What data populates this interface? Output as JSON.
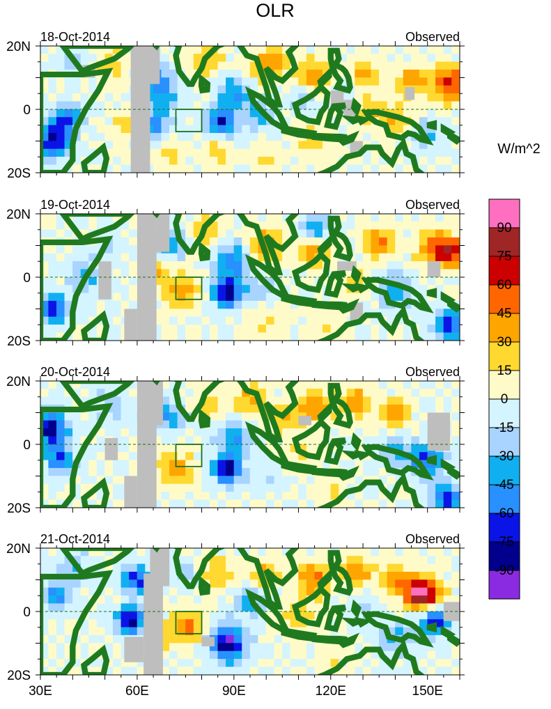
{
  "title": "OLR",
  "units": "W/m^2",
  "land_color": "#1f7a1f",
  "missing_color": "#bebebe",
  "domain": {
    "lon": [
      30,
      160
    ],
    "lat": [
      -20,
      20
    ]
  },
  "target_box": {
    "lon": [
      72,
      80
    ],
    "lat": [
      -7,
      0
    ]
  },
  "lat_labels": [
    {
      "lat": 20,
      "label": "20N"
    },
    {
      "lat": 0,
      "label": "0"
    },
    {
      "lat": -20,
      "label": "20S"
    }
  ],
  "lon_labels": [
    {
      "lon": 30,
      "label": "30E"
    },
    {
      "lon": 60,
      "label": "60E"
    },
    {
      "lon": 90,
      "label": "90E"
    },
    {
      "lon": 120,
      "label": "120E"
    },
    {
      "lon": 150,
      "label": "150E"
    }
  ],
  "colorbar": {
    "levels": [
      "90",
      "75",
      "60",
      "45",
      "30",
      "15",
      "0",
      "-15",
      "-30",
      "-45",
      "-60",
      "-75",
      "-90"
    ],
    "colors": [
      "#ff6fbf",
      "#a02525",
      "#cc0000",
      "#ff6600",
      "#ffa500",
      "#ffd830",
      "#fffbc8",
      "#d4f4ff",
      "#a8d4ff",
      "#10b0f0",
      "#2890ff",
      "#0a14e6",
      "#00008c",
      "#8a2be2"
    ]
  },
  "panels": [
    {
      "date": "18-Oct-2014",
      "label": "Observed",
      "anomalies": [
        {
          "lon": 115,
          "lat": 10,
          "v": 45
        },
        {
          "lon": 130,
          "lat": 11,
          "v": 45
        },
        {
          "lon": 145,
          "lat": 9,
          "v": 45
        },
        {
          "lon": 157,
          "lat": 8,
          "v": 65
        },
        {
          "lon": 103,
          "lat": 15,
          "v": 35
        },
        {
          "lon": 98,
          "lat": 13,
          "v": 30
        },
        {
          "lon": 82,
          "lat": 16,
          "v": 30
        },
        {
          "lon": 132,
          "lat": 0,
          "v": 30
        },
        {
          "lon": 140,
          "lat": -3,
          "v": 30
        },
        {
          "lon": 115,
          "lat": -10,
          "v": 25
        },
        {
          "lon": 85,
          "lat": -13,
          "v": 25
        },
        {
          "lon": 58,
          "lat": -5,
          "v": 30
        },
        {
          "lon": 52,
          "lat": 14,
          "v": 25
        },
        {
          "lon": 70,
          "lat": -14,
          "v": 20
        },
        {
          "lon": 100,
          "lat": -16,
          "v": 20
        },
        {
          "lon": 34,
          "lat": -10,
          "v": -80
        },
        {
          "lon": 38,
          "lat": -3,
          "v": -55
        },
        {
          "lon": 66,
          "lat": 10,
          "v": -45
        },
        {
          "lon": 68,
          "lat": 4,
          "v": -35
        },
        {
          "lon": 65,
          "lat": -5,
          "v": -60
        },
        {
          "lon": 86,
          "lat": -4,
          "v": -75
        },
        {
          "lon": 90,
          "lat": 5,
          "v": -45
        },
        {
          "lon": 98,
          "lat": -2,
          "v": -40
        },
        {
          "lon": 112,
          "lat": 3,
          "v": -30
        },
        {
          "lon": 125,
          "lat": 7,
          "v": -20
        },
        {
          "lon": 40,
          "lat": 15,
          "v": -20
        },
        {
          "lon": 150,
          "lat": -8,
          "v": -30
        }
      ],
      "missing": [
        {
          "lon": [
            58,
            64
          ],
          "lat": [
            -20,
            20
          ]
        },
        {
          "lon": [
            62,
            67
          ],
          "lat": [
            8,
            20
          ]
        },
        {
          "lon": [
            43,
            47
          ],
          "lat": [
            10,
            14
          ]
        },
        {
          "lon": [
            120,
            124
          ],
          "lat": [
            0,
            6
          ]
        },
        {
          "lon": [
            124,
            128
          ],
          "lat": [
            -2,
            3
          ]
        },
        {
          "lon": [
            143,
            146
          ],
          "lat": [
            3,
            7
          ]
        },
        {
          "lon": [
            126,
            130
          ],
          "lat": [
            -14,
            -10
          ]
        }
      ]
    },
    {
      "date": "19-Oct-2014",
      "label": "Observed",
      "anomalies": [
        {
          "lon": 100,
          "lat": 10,
          "v": 45
        },
        {
          "lon": 115,
          "lat": 8,
          "v": 45
        },
        {
          "lon": 135,
          "lat": 11,
          "v": 50
        },
        {
          "lon": 152,
          "lat": 9,
          "v": 50
        },
        {
          "lon": 158,
          "lat": 8,
          "v": 62
        },
        {
          "lon": 82,
          "lat": 15,
          "v": 30
        },
        {
          "lon": 74,
          "lat": -5,
          "v": 40
        },
        {
          "lon": 66,
          "lat": 2,
          "v": 30
        },
        {
          "lon": 128,
          "lat": -2,
          "v": 25
        },
        {
          "lon": 100,
          "lat": -14,
          "v": 20
        },
        {
          "lon": 120,
          "lat": -15,
          "v": 15
        },
        {
          "lon": 34,
          "lat": -10,
          "v": -70
        },
        {
          "lon": 44,
          "lat": 0,
          "v": -30
        },
        {
          "lon": 70,
          "lat": 10,
          "v": -45
        },
        {
          "lon": 88,
          "lat": -5,
          "v": -90
        },
        {
          "lon": 90,
          "lat": 5,
          "v": -55
        },
        {
          "lon": 98,
          "lat": -4,
          "v": -30
        },
        {
          "lon": 115,
          "lat": 15,
          "v": -45
        },
        {
          "lon": 140,
          "lat": -4,
          "v": -40
        },
        {
          "lon": 157,
          "lat": -15,
          "v": -70
        },
        {
          "lon": 52,
          "lat": 10,
          "v": -20
        }
      ],
      "missing": [
        {
          "lon": [
            60,
            66
          ],
          "lat": [
            -20,
            20
          ]
        },
        {
          "lon": [
            66,
            70
          ],
          "lat": [
            8,
            20
          ]
        },
        {
          "lon": [
            48,
            52
          ],
          "lat": [
            -7,
            5
          ]
        },
        {
          "lon": [
            56,
            60
          ],
          "lat": [
            -20,
            -10
          ]
        },
        {
          "lon": [
            122,
            128
          ],
          "lat": [
            2,
            5
          ]
        },
        {
          "lon": [
            150,
            154
          ],
          "lat": [
            0,
            5
          ]
        },
        {
          "lon": [
            126,
            130
          ],
          "lat": [
            -14,
            -8
          ]
        }
      ]
    },
    {
      "date": "20-Oct-2014",
      "label": "Observed",
      "anomalies": [
        {
          "lon": 115,
          "lat": 12,
          "v": 45
        },
        {
          "lon": 128,
          "lat": 13,
          "v": 45
        },
        {
          "lon": 140,
          "lat": 10,
          "v": 45
        },
        {
          "lon": 95,
          "lat": 14,
          "v": 35
        },
        {
          "lon": 105,
          "lat": 8,
          "v": 35
        },
        {
          "lon": 82,
          "lat": 12,
          "v": 30
        },
        {
          "lon": 72,
          "lat": -8,
          "v": 35
        },
        {
          "lon": 110,
          "lat": -3,
          "v": 20
        },
        {
          "lon": 120,
          "lat": -15,
          "v": 15
        },
        {
          "lon": 33,
          "lat": 5,
          "v": -85
        },
        {
          "lon": 36,
          "lat": -5,
          "v": -60
        },
        {
          "lon": 88,
          "lat": -8,
          "v": -85
        },
        {
          "lon": 90,
          "lat": 2,
          "v": -45
        },
        {
          "lon": 66,
          "lat": 10,
          "v": -45
        },
        {
          "lon": 72,
          "lat": 8,
          "v": -30
        },
        {
          "lon": 150,
          "lat": -5,
          "v": -65
        },
        {
          "lon": 156,
          "lat": -17,
          "v": -70
        },
        {
          "lon": 140,
          "lat": -2,
          "v": -35
        },
        {
          "lon": 52,
          "lat": 12,
          "v": -25
        },
        {
          "lon": 100,
          "lat": -10,
          "v": -15
        }
      ],
      "missing": [
        {
          "lon": [
            60,
            66
          ],
          "lat": [
            -20,
            20
          ]
        },
        {
          "lon": [
            64,
            68
          ],
          "lat": [
            6,
            20
          ]
        },
        {
          "lon": [
            50,
            54
          ],
          "lat": [
            -5,
            2
          ]
        },
        {
          "lon": [
            56,
            60
          ],
          "lat": [
            -20,
            -10
          ]
        },
        {
          "lon": [
            150,
            157
          ],
          "lat": [
            -2,
            10
          ]
        },
        {
          "lon": [
            110,
            114
          ],
          "lat": [
            6,
            9
          ]
        }
      ]
    },
    {
      "date": "21-Oct-2014",
      "label": "Observed",
      "anomalies": [
        {
          "lon": 115,
          "lat": 10,
          "v": 45
        },
        {
          "lon": 128,
          "lat": 13,
          "v": 45
        },
        {
          "lon": 140,
          "lat": 10,
          "v": 45
        },
        {
          "lon": 150,
          "lat": 5,
          "v": 50
        },
        {
          "lon": 147,
          "lat": 6,
          "v": 65
        },
        {
          "lon": 100,
          "lat": 12,
          "v": 35
        },
        {
          "lon": 84,
          "lat": 12,
          "v": 30
        },
        {
          "lon": 76,
          "lat": -5,
          "v": 55
        },
        {
          "lon": 66,
          "lat": -8,
          "v": 35
        },
        {
          "lon": 110,
          "lat": -2,
          "v": 25
        },
        {
          "lon": 120,
          "lat": -14,
          "v": 15
        },
        {
          "lon": 35,
          "lat": 5,
          "v": -50
        },
        {
          "lon": 40,
          "lat": 14,
          "v": -30
        },
        {
          "lon": 60,
          "lat": 10,
          "v": -70
        },
        {
          "lon": 58,
          "lat": -3,
          "v": -85
        },
        {
          "lon": 88,
          "lat": -10,
          "v": -90
        },
        {
          "lon": 95,
          "lat": 3,
          "v": -40
        },
        {
          "lon": 152,
          "lat": -3,
          "v": -75
        },
        {
          "lon": 140,
          "lat": -8,
          "v": -35
        },
        {
          "lon": 76,
          "lat": 12,
          "v": -25
        },
        {
          "lon": 130,
          "lat": 0,
          "v": -20
        }
      ],
      "missing": [
        {
          "lon": [
            62,
            68
          ],
          "lat": [
            -20,
            12
          ]
        },
        {
          "lon": [
            64,
            70
          ],
          "lat": [
            8,
            20
          ]
        },
        {
          "lon": [
            56,
            62
          ],
          "lat": [
            -16,
            -8
          ]
        },
        {
          "lon": [
            155,
            160
          ],
          "lat": [
            -3,
            3
          ]
        },
        {
          "lon": [
            80,
            84
          ],
          "lat": [
            -11,
            -8
          ]
        }
      ]
    }
  ]
}
